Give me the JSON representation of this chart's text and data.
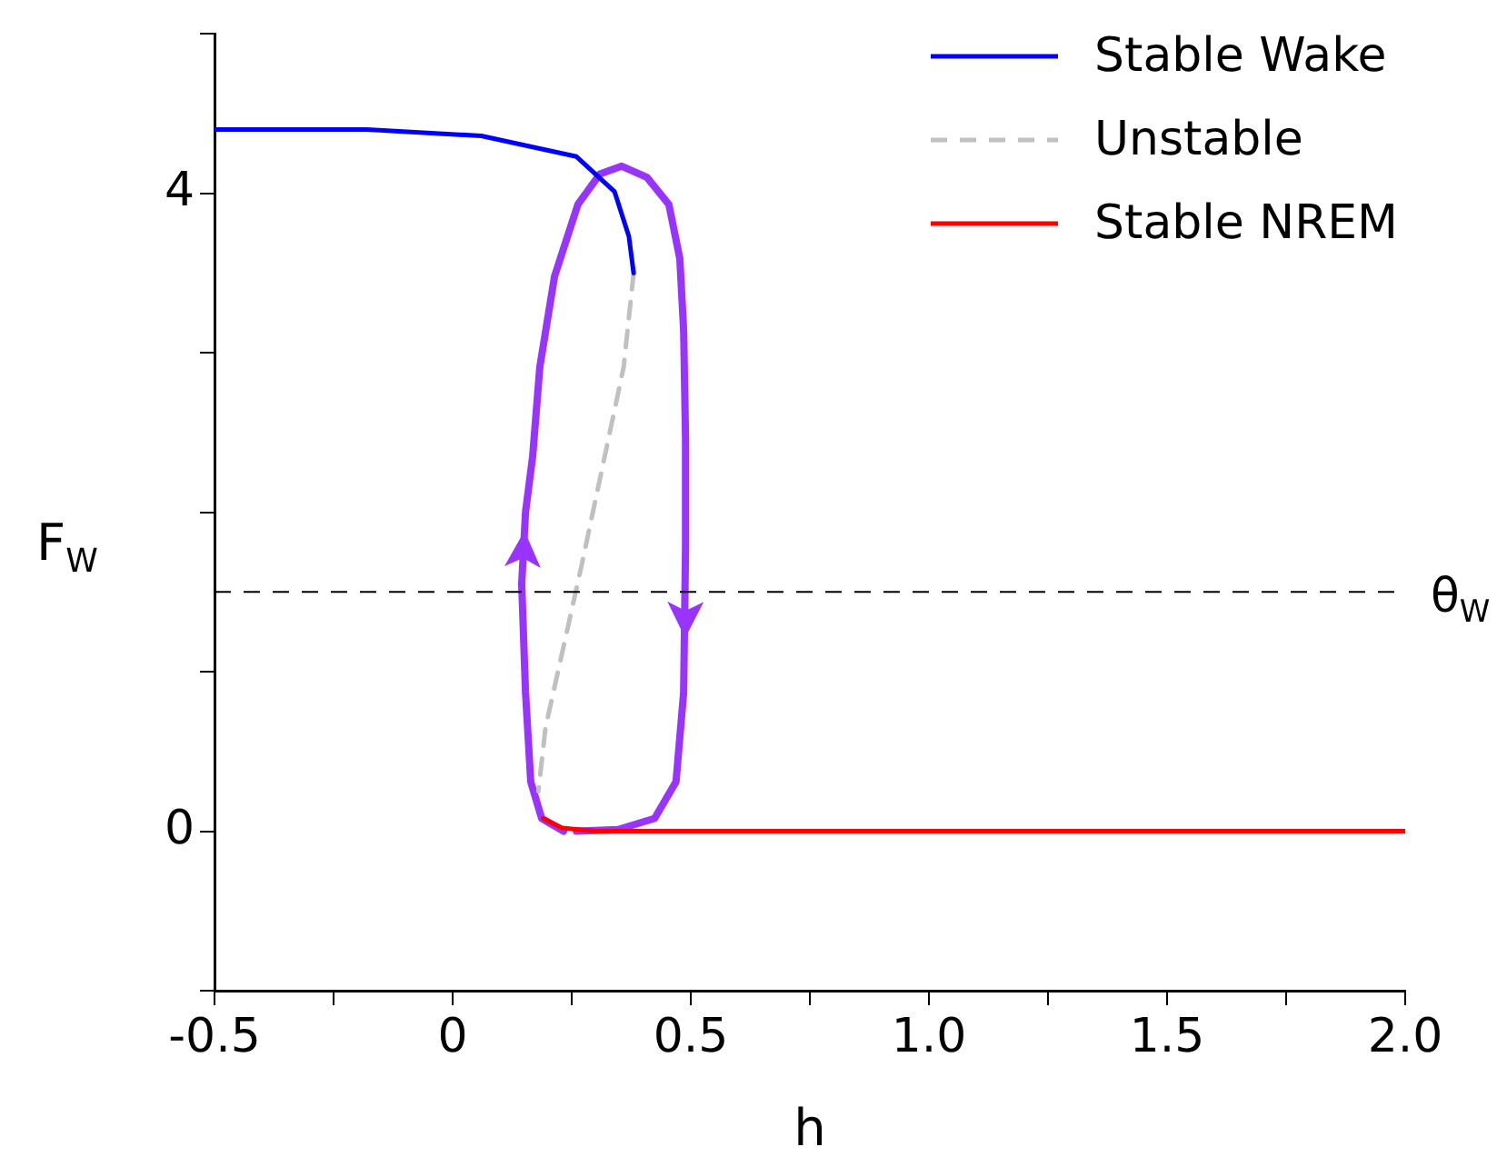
{
  "chart_data": {
    "type": "line",
    "xlabel": "h",
    "ylabel": "F$_{W}$",
    "xlim": [
      -0.5,
      2.0
    ],
    "xticks": [
      -0.5,
      {
        "value": -0.25,
        "label": null
      },
      0.0,
      {
        "value": 0.25,
        "label": null
      },
      {
        "value": 0.5,
        "label": "0.5"
      },
      {
        "value": 0.75,
        "label": null
      },
      {
        "value": 1.0,
        "label": "1.0"
      },
      {
        "value": 1.25,
        "label": null
      },
      {
        "value": 1.5,
        "label": "1.5"
      },
      {
        "value": 1.75,
        "label": null
      },
      {
        "value": 2.0,
        "label": "2.0"
      }
    ],
    "ylim": [
      -1,
      5
    ],
    "yticks": [
      {
        "value": -1,
        "label": null
      },
      0,
      {
        "value": 1,
        "label": null
      },
      {
        "value": 2,
        "label": null
      },
      {
        "value": 3,
        "label": null
      },
      4,
      {
        "value": 5,
        "label": null
      }
    ],
    "legend": "top right",
    "grid": false,
    "marker": "none",
    "ref_lines": [
      {
        "axis": "y",
        "value": 1.5,
        "label": "θ$_{W}$",
        "color": "#000000",
        "line_style": "dashed"
      }
    ],
    "series": [
      {
        "name": "Stable Wake",
        "color": "#0000ff",
        "line_style": "solid",
        "x": [
          -0.5,
          -0.18,
          0.06,
          0.26,
          0.34,
          0.37,
          0.38
        ],
        "values": [
          4.4,
          4.4,
          4.36,
          4.23,
          4.01,
          3.73,
          3.5
        ]
      },
      {
        "name": "Unstable",
        "color": "#c0c0c0",
        "line_style": "dashed",
        "x": [
          0.38,
          0.359,
          0.271,
          0.195,
          0.18
        ],
        "values": [
          3.5,
          2.91,
          1.67,
          0.65,
          0.25
        ]
      },
      {
        "name": "Stable NREM",
        "color": "#ff0000",
        "line_style": "solid",
        "x": [
          0.19,
          0.23,
          0.3,
          2.0
        ],
        "values": [
          0.08,
          0.02,
          0,
          0
        ]
      },
      {
        "color": "#9933ff",
        "line_style": "solid",
        "x": [
          0.233,
          0.187,
          0.164,
          0.153,
          0.145,
          0.153,
          0.168,
          0.183,
          0.214,
          0.263,
          0.309,
          0.355,
          0.408,
          0.454,
          0.477,
          0.485,
          0.489,
          0.489,
          0.485,
          0.469,
          0.424,
          0.347,
          0.26
        ],
        "values": [
          0,
          0.08,
          0.31,
          0.87,
          1.55,
          2.0,
          2.35,
          2.91,
          3.48,
          3.93,
          4.12,
          4.17,
          4.1,
          3.93,
          3.59,
          3.14,
          2.46,
          1.78,
          0.87,
          0.31,
          0.08,
          0.01,
          0
        ]
      }
    ]
  }
}
